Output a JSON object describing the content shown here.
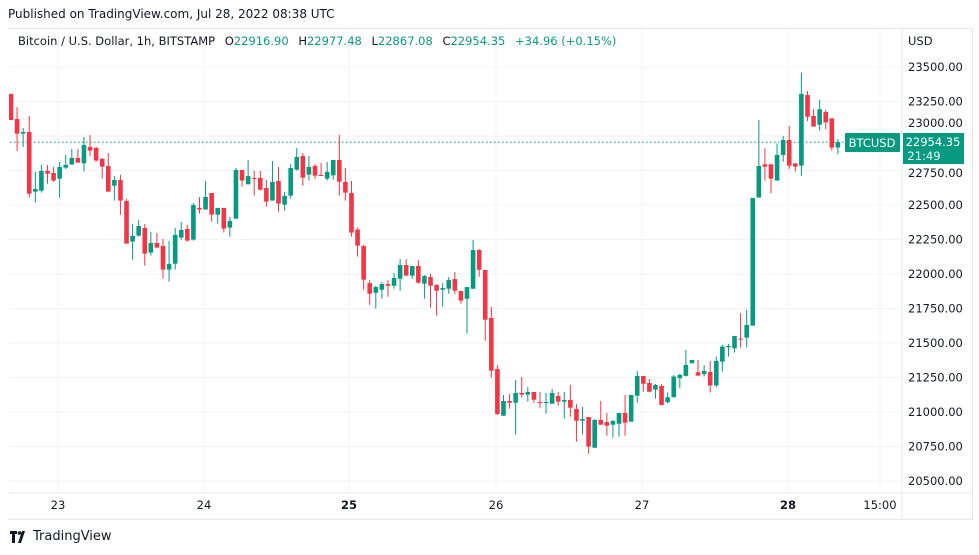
{
  "published": "Published on TradingView.com, Jul 28, 2022 08:38 UTC",
  "legend": {
    "symbol": "Bitcoin / U.S. Dollar, 1h, BITSTAMP",
    "o_label": "O",
    "o": "22916.90",
    "h_label": "H",
    "h": "22977.48",
    "l_label": "L",
    "l": "22867.08",
    "c_label": "C",
    "c": "22954.35",
    "change": "+34.96 (+0.15%)"
  },
  "currency": "USD",
  "ticker_label": "BTCUSD",
  "last_price": "22954.35",
  "countdown": "21:49",
  "footer_brand": "TradingView",
  "colors": {
    "up": "#089981",
    "down": "#f23645",
    "grid": "#f0f3fa"
  },
  "chart_data": {
    "type": "candlestick",
    "interval": "1h",
    "ylim": [
      20400,
      23600
    ],
    "y_ticks": [
      "23500.00",
      "23250.00",
      "23000.00",
      "22750.00",
      "22500.00",
      "22250.00",
      "22000.00",
      "21750.00",
      "21500.00",
      "21250.00",
      "21000.00",
      "20750.00",
      "20500.00"
    ],
    "x_ticks": [
      "23",
      "24",
      "25",
      "26",
      "27",
      "28",
      "15:00"
    ],
    "last_price": 22954.35,
    "grid": true,
    "candles_ohlc": [
      [
        23305,
        23305,
        23116,
        23116
      ],
      [
        23123,
        23210,
        22892,
        23017
      ],
      [
        23017,
        23058,
        22921,
        23029
      ],
      [
        23029,
        23145,
        22553,
        22582
      ],
      [
        22597,
        22739,
        22517,
        22616
      ],
      [
        22604,
        22790,
        22590,
        22747
      ],
      [
        22747,
        22790,
        22655,
        22727
      ],
      [
        22732,
        22776,
        22669,
        22677
      ],
      [
        22691,
        22812,
        22553,
        22776
      ],
      [
        22771,
        22863,
        22761,
        22791
      ],
      [
        22793,
        22906,
        22793,
        22841
      ],
      [
        22841,
        22906,
        22807,
        22807
      ],
      [
        22802,
        22993,
        22742,
        22935
      ],
      [
        22921,
        23007,
        22855,
        22894
      ],
      [
        22913,
        22923,
        22814,
        22822
      ],
      [
        22834,
        22841,
        22691,
        22778
      ],
      [
        22783,
        22877,
        22597,
        22597
      ],
      [
        22640,
        22710,
        22532,
        22681
      ],
      [
        22681,
        22718,
        22430,
        22532
      ],
      [
        22529,
        22544,
        22220,
        22220
      ],
      [
        22235,
        22363,
        22104,
        22276
      ],
      [
        22278,
        22392,
        22271,
        22348
      ],
      [
        22334,
        22363,
        22061,
        22148
      ],
      [
        22155,
        22305,
        22133,
        22225
      ],
      [
        22225,
        22297,
        22191,
        22191
      ],
      [
        22203,
        22254,
        21967,
        22032
      ],
      [
        22032,
        22240,
        21945,
        22073
      ],
      [
        22075,
        22334,
        22032,
        22283
      ],
      [
        22264,
        22377,
        22249,
        22319
      ],
      [
        22327,
        22356,
        22235,
        22242
      ],
      [
        22249,
        22515,
        22242,
        22500
      ],
      [
        22479,
        22558,
        22438,
        22467
      ],
      [
        22467,
        22674,
        22467,
        22558
      ],
      [
        22587,
        22587,
        22380,
        22430
      ],
      [
        22430,
        22479,
        22365,
        22479
      ],
      [
        22479,
        22479,
        22300,
        22329
      ],
      [
        22336,
        22413,
        22271,
        22385
      ],
      [
        22401,
        22768,
        22401,
        22754
      ],
      [
        22754,
        22754,
        22633,
        22677
      ],
      [
        22650,
        22826,
        22650,
        22710
      ],
      [
        22696,
        22747,
        22568,
        22691
      ],
      [
        22696,
        22747,
        22604,
        22611
      ],
      [
        22623,
        22682,
        22488,
        22525
      ],
      [
        22532,
        22819,
        22532,
        22667
      ],
      [
        22674,
        22776,
        22452,
        22510
      ],
      [
        22503,
        22595,
        22459,
        22566
      ],
      [
        22568,
        22797,
        22546,
        22768
      ],
      [
        22756,
        22913,
        22749,
        22848
      ],
      [
        22855,
        22877,
        22640,
        22698
      ],
      [
        22720,
        22855,
        22677,
        22776
      ],
      [
        22783,
        22797,
        22691,
        22713
      ],
      [
        22718,
        22805,
        22710,
        22710
      ],
      [
        22691,
        22812,
        22677,
        22740
      ],
      [
        22715,
        22826,
        22684,
        22826
      ],
      [
        22826,
        23008,
        22568,
        22669
      ],
      [
        22667,
        22768,
        22532,
        22590
      ],
      [
        22587,
        22674,
        22271,
        22300
      ],
      [
        22322,
        22336,
        22126,
        22206
      ],
      [
        22202,
        22210,
        21886,
        21959
      ],
      [
        21934,
        21956,
        21777,
        21857
      ],
      [
        21864,
        21915,
        21749,
        21906
      ],
      [
        21886,
        21942,
        21821,
        21927
      ],
      [
        21927,
        21956,
        21835,
        21915
      ],
      [
        21915,
        22007,
        21893,
        21971
      ],
      [
        21966,
        22108,
        21879,
        22065
      ],
      [
        22065,
        22108,
        21988,
        21988
      ],
      [
        21988,
        22058,
        21966,
        22058
      ],
      [
        22058,
        22101,
        21930,
        21937
      ],
      [
        21930,
        21992,
        21821,
        21985
      ],
      [
        21978,
        22000,
        21756,
        21915
      ],
      [
        21920,
        21927,
        21698,
        21879
      ],
      [
        21886,
        21934,
        21763,
        21898
      ],
      [
        21893,
        21978,
        21857,
        21956
      ],
      [
        21963,
        22014,
        21857,
        21879
      ],
      [
        21877,
        21877,
        21785,
        21807
      ],
      [
        21821,
        21905,
        21567,
        21905
      ],
      [
        21893,
        22246,
        21893,
        22174
      ],
      [
        22174,
        22181,
        21980,
        22031
      ],
      [
        22029,
        22029,
        21517,
        21669
      ],
      [
        21681,
        21761,
        21249,
        21299
      ],
      [
        21311,
        21340,
        20978,
        20985
      ],
      [
        20973,
        21123,
        20973,
        21080
      ],
      [
        21080,
        21130,
        21024,
        21067
      ],
      [
        21067,
        21232,
        20836,
        21138
      ],
      [
        21138,
        21253,
        21104,
        21126
      ],
      [
        21126,
        21181,
        21075,
        21145
      ],
      [
        21145,
        21145,
        21067,
        21089
      ],
      [
        21072,
        21145,
        21031,
        21067
      ],
      [
        21067,
        21138,
        20988,
        21072
      ],
      [
        21060,
        21167,
        21060,
        21138
      ],
      [
        21116,
        21145,
        21046,
        21075
      ],
      [
        21075,
        21145,
        20952,
        21087
      ],
      [
        21087,
        21196,
        20966,
        21031
      ],
      [
        21022,
        21058,
        20785,
        20937
      ],
      [
        20937,
        21036,
        20836,
        20949
      ],
      [
        20964,
        20964,
        20698,
        20749
      ],
      [
        20741,
        20949,
        20741,
        20942
      ],
      [
        20942,
        21080,
        20908,
        20908
      ],
      [
        20927,
        20993,
        20828,
        20901
      ],
      [
        20908,
        20942,
        20814,
        20935
      ],
      [
        20915,
        20993,
        20821,
        20993
      ],
      [
        20993,
        21123,
        20828,
        20923
      ],
      [
        20930,
        21123,
        20930,
        21123
      ],
      [
        21118,
        21297,
        21067,
        21261
      ],
      [
        21261,
        21261,
        21147,
        21205
      ],
      [
        21210,
        21239,
        21147,
        21147
      ],
      [
        21162,
        21203,
        21097,
        21196
      ],
      [
        21189,
        21204,
        21047,
        21051
      ],
      [
        21071,
        21141,
        21064,
        21107
      ],
      [
        21107,
        21269,
        21107,
        21257
      ],
      [
        21245,
        21276,
        21172,
        21269
      ],
      [
        21262,
        21450,
        21257,
        21341
      ],
      [
        21353,
        21377,
        21353,
        21377
      ],
      [
        21288,
        21377,
        21260,
        21264
      ],
      [
        21274,
        21341,
        21257,
        21298
      ],
      [
        21290,
        21370,
        21141,
        21192
      ],
      [
        21192,
        21401,
        21180,
        21370
      ],
      [
        21365,
        21486,
        21293,
        21474
      ],
      [
        21469,
        21494,
        21402,
        21479
      ],
      [
        21462,
        21551,
        21431,
        21551
      ],
      [
        21532,
        21716,
        21469,
        21527
      ],
      [
        21539,
        21740,
        21469,
        21631
      ],
      [
        21626,
        22551,
        21626,
        22551
      ],
      [
        22554,
        23116,
        22554,
        22783
      ],
      [
        22795,
        22911,
        22677,
        22778
      ],
      [
        22795,
        22795,
        22585,
        22691
      ],
      [
        22677,
        22947,
        22677,
        22863
      ],
      [
        22863,
        23000,
        22814,
        22971
      ],
      [
        22971,
        23073,
        22761,
        22785
      ],
      [
        22802,
        22802,
        22742,
        22778
      ],
      [
        22785,
        23459,
        22713,
        23305
      ],
      [
        23297,
        23326,
        23109,
        23140
      ],
      [
        23145,
        23194,
        23068,
        23068
      ],
      [
        23082,
        23261,
        23039,
        23194
      ],
      [
        23174,
        23189,
        23051,
        23099
      ],
      [
        23128,
        23128,
        22894,
        22916
      ],
      [
        22916.9,
        22977.48,
        22867.08,
        22954.35
      ]
    ]
  }
}
